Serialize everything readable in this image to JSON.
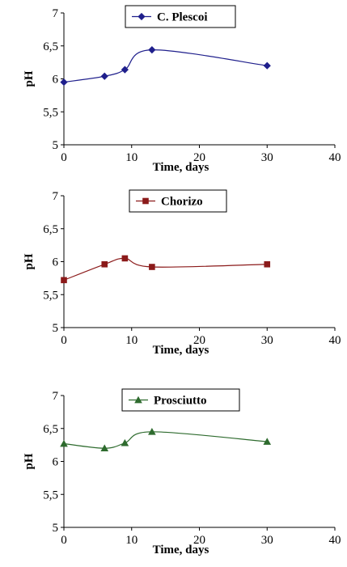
{
  "chart_data": [
    {
      "type": "line",
      "xlabel": "Time, days",
      "ylabel": "pH",
      "xlim": [
        0,
        40
      ],
      "ylim": [
        5,
        7
      ],
      "x_ticks": [
        "0",
        "10",
        "20",
        "30",
        "40"
      ],
      "y_ticks": [
        "5",
        "5,5",
        "6",
        "6,5",
        "7"
      ],
      "legend_position": "top-right",
      "grid": false,
      "series": [
        {
          "name": "C. Plescoi",
          "marker": "diamond",
          "color": "#1f1f8c",
          "x": [
            0,
            6,
            9,
            13,
            30
          ],
          "y": [
            5.95,
            6.04,
            6.14,
            6.44,
            6.2
          ]
        }
      ]
    },
    {
      "type": "line",
      "xlabel": "Time, days",
      "ylabel": "pH",
      "xlim": [
        0,
        40
      ],
      "ylim": [
        5,
        7
      ],
      "x_ticks": [
        "0",
        "10",
        "20",
        "30",
        "40"
      ],
      "y_ticks": [
        "5",
        "5,5",
        "6",
        "6,5",
        "7"
      ],
      "legend_position": "top-center",
      "grid": false,
      "series": [
        {
          "name": "Chorizo",
          "marker": "square",
          "color": "#8b1a1a",
          "x": [
            0,
            6,
            9,
            13,
            30
          ],
          "y": [
            5.72,
            5.96,
            6.05,
            5.92,
            5.96
          ]
        }
      ]
    },
    {
      "type": "line",
      "xlabel": "Time, days",
      "ylabel": "pH",
      "xlim": [
        0,
        40
      ],
      "ylim": [
        5,
        7
      ],
      "x_ticks": [
        "0",
        "10",
        "20",
        "30",
        "40"
      ],
      "y_ticks": [
        "5",
        "5,5",
        "6",
        "6,5",
        "7"
      ],
      "legend_position": "top-center",
      "grid": false,
      "series": [
        {
          "name": "Prosciutto",
          "marker": "triangle",
          "color": "#2e6b2e",
          "x": [
            0,
            6,
            9,
            13,
            30
          ],
          "y": [
            6.27,
            6.2,
            6.28,
            6.45,
            6.3
          ]
        }
      ]
    }
  ]
}
